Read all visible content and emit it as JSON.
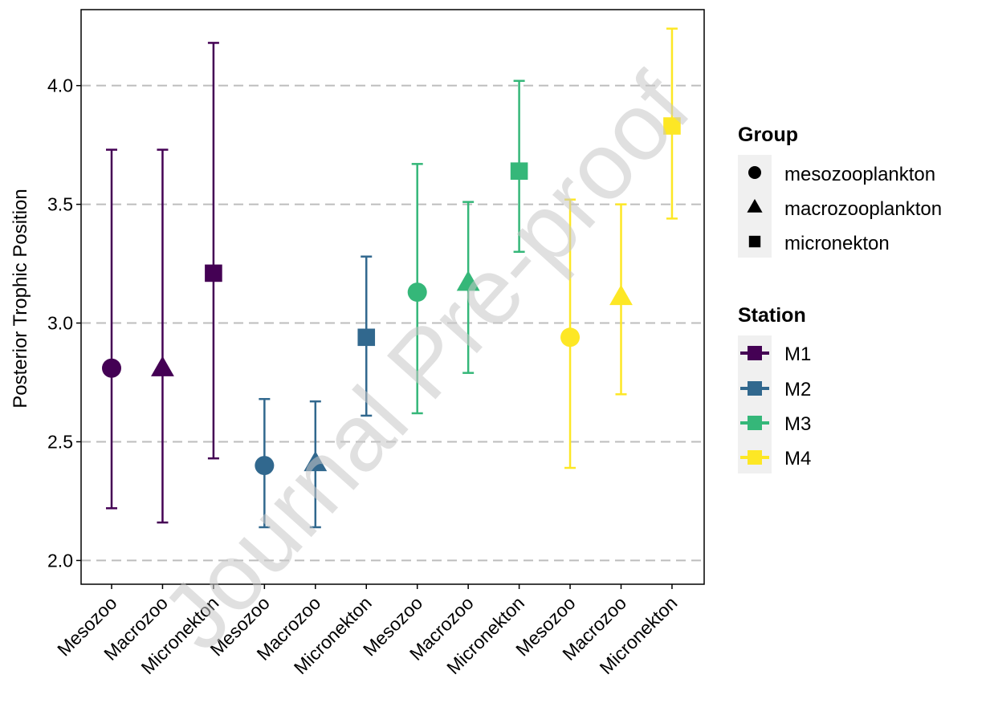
{
  "chart_data": {
    "type": "scatter",
    "ylabel": "Posterior Trophic Position",
    "xlabel": "",
    "ylim": [
      1.9,
      4.32
    ],
    "yticks": [
      2.0,
      2.5,
      3.0,
      3.5,
      4.0
    ],
    "grid": "horizontal-major-dashed",
    "categories": [
      "Mesozoo",
      "Macrozoo",
      "Micronekton",
      "Mesozoo",
      "Macrozoo",
      "Micronekton",
      "Mesozoo",
      "Macrozoo",
      "Micronekton",
      "Mesozoo",
      "Macrozoo",
      "Micronekton"
    ],
    "points": [
      {
        "station": "M1",
        "group": "mesozooplankton",
        "y": 2.81,
        "low": 2.22,
        "high": 3.73
      },
      {
        "station": "M1",
        "group": "macrozooplankton",
        "y": 2.81,
        "low": 2.16,
        "high": 3.73
      },
      {
        "station": "M1",
        "group": "micronekton",
        "y": 3.21,
        "low": 2.43,
        "high": 4.18
      },
      {
        "station": "M2",
        "group": "mesozooplankton",
        "y": 2.4,
        "low": 2.14,
        "high": 2.68
      },
      {
        "station": "M2",
        "group": "macrozooplankton",
        "y": 2.41,
        "low": 2.14,
        "high": 2.67
      },
      {
        "station": "M2",
        "group": "micronekton",
        "y": 2.94,
        "low": 2.61,
        "high": 3.28
      },
      {
        "station": "M3",
        "group": "mesozooplankton",
        "y": 3.13,
        "low": 2.62,
        "high": 3.67
      },
      {
        "station": "M3",
        "group": "macrozooplankton",
        "y": 3.17,
        "low": 2.79,
        "high": 3.51
      },
      {
        "station": "M3",
        "group": "micronekton",
        "y": 3.64,
        "low": 3.3,
        "high": 4.02
      },
      {
        "station": "M4",
        "group": "mesozooplankton",
        "y": 2.94,
        "low": 2.39,
        "high": 3.52
      },
      {
        "station": "M4",
        "group": "macrozooplankton",
        "y": 3.11,
        "low": 2.7,
        "high": 3.5
      },
      {
        "station": "M4",
        "group": "micronekton",
        "y": 3.83,
        "low": 3.44,
        "high": 4.24
      }
    ],
    "legend_placement": "right",
    "legend_group": {
      "title": "Group",
      "items": [
        {
          "label": "mesozooplankton",
          "shape": "circle"
        },
        {
          "label": "macrozooplankton",
          "shape": "triangle"
        },
        {
          "label": "micronekton",
          "shape": "square"
        }
      ]
    },
    "legend_station": {
      "title": "Station",
      "items": [
        {
          "label": "M1",
          "color": "#440154"
        },
        {
          "label": "M2",
          "color": "#31688E"
        },
        {
          "label": "M3",
          "color": "#35B779"
        },
        {
          "label": "M4",
          "color": "#FDE725"
        }
      ]
    },
    "watermark": "Journal Pre-proof"
  }
}
